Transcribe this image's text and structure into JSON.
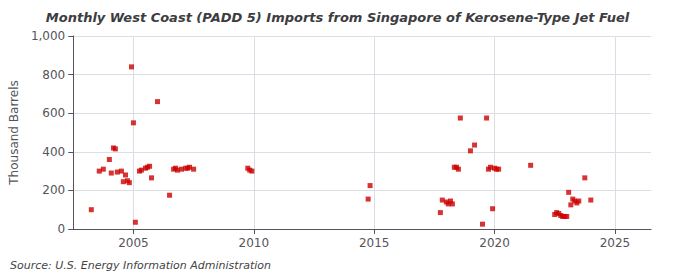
{
  "chart_data": {
    "type": "scatter",
    "title": "Monthly West Coast (PADD 5) Imports from Singapore of Kerosene-Type Jet Fuel",
    "ylabel": "Thousand Barrels",
    "source": "Source: U.S. Energy Information Administration",
    "color": "#cc0000",
    "marker": "square",
    "grid": true,
    "xlim": [
      2002.5,
      2026.5
    ],
    "xticks": [
      2005,
      2010,
      2015,
      2020,
      2025
    ],
    "ylim": [
      0,
      1000
    ],
    "yticks": [
      0,
      200,
      400,
      600,
      800,
      {
        "value": 1000,
        "label": "1,000"
      }
    ],
    "x": [
      2003.25,
      2003.58,
      2003.75,
      2004.0,
      2004.08,
      2004.17,
      2004.25,
      2004.33,
      2004.5,
      2004.58,
      2004.67,
      2004.75,
      2004.83,
      2004.92,
      2005.0,
      2005.08,
      2005.25,
      2005.33,
      2005.5,
      2005.58,
      2005.67,
      2005.75,
      2006.0,
      2006.5,
      2006.67,
      2006.75,
      2006.83,
      2007.0,
      2007.17,
      2007.25,
      2007.33,
      2007.5,
      2009.75,
      2009.83,
      2009.92,
      2014.75,
      2014.83,
      2017.75,
      2017.83,
      2018.0,
      2018.08,
      2018.17,
      2018.25,
      2018.33,
      2018.42,
      2018.5,
      2018.58,
      2019.0,
      2019.17,
      2019.5,
      2019.67,
      2019.75,
      2019.83,
      2019.92,
      2020.0,
      2020.08,
      2020.17,
      2021.5,
      2022.5,
      2022.58,
      2022.67,
      2022.75,
      2022.83,
      2022.92,
      2023.0,
      2023.08,
      2023.17,
      2023.25,
      2023.33,
      2023.42,
      2023.5,
      2023.75,
      2024.0
    ],
    "values": [
      100,
      300,
      310,
      360,
      290,
      420,
      415,
      295,
      300,
      245,
      280,
      250,
      240,
      840,
      550,
      35,
      300,
      305,
      315,
      320,
      325,
      265,
      660,
      175,
      310,
      315,
      305,
      310,
      315,
      315,
      320,
      310,
      315,
      305,
      300,
      155,
      225,
      85,
      150,
      140,
      130,
      145,
      130,
      320,
      320,
      310,
      575,
      405,
      435,
      25,
      575,
      310,
      320,
      105,
      315,
      310,
      310,
      330,
      75,
      85,
      80,
      70,
      65,
      65,
      65,
      190,
      125,
      155,
      145,
      135,
      145,
      265,
      150
    ]
  }
}
